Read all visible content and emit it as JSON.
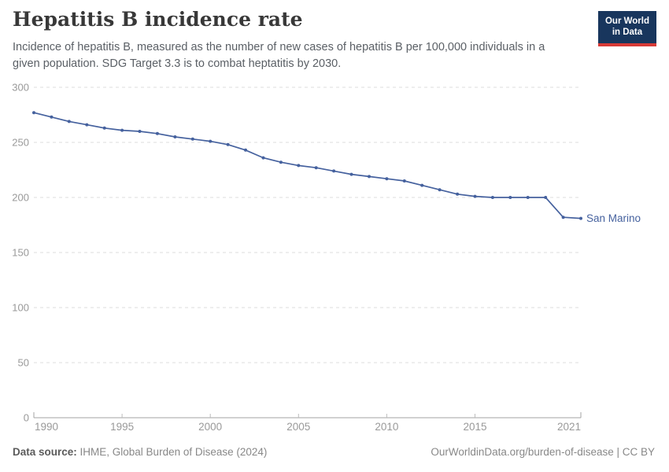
{
  "header": {
    "title": "Hepatitis B incidence rate",
    "subtitle": "Incidence of hepatitis B, measured as the number of new cases of hepatitis B per 100,000 individuals in a given population. SDG Target 3.3 is to combat heptatitis by 2030.",
    "logo": {
      "line1": "Our World",
      "line2": "in Data",
      "bg_color": "#18365d",
      "stripe_color": "#d73a36"
    }
  },
  "chart_data": {
    "type": "line",
    "title": "Hepatitis B incidence rate",
    "xlabel": "",
    "ylabel": "",
    "xlim": [
      1990,
      2021
    ],
    "ylim": [
      0,
      300
    ],
    "xticks": [
      1990,
      1995,
      2000,
      2005,
      2010,
      2015,
      2021
    ],
    "yticks": [
      0,
      50,
      100,
      150,
      200,
      250,
      300
    ],
    "grid": "horizontal-dashed",
    "legend_position": "end-of-line",
    "x": [
      1990,
      1991,
      1992,
      1993,
      1994,
      1995,
      1996,
      1997,
      1998,
      1999,
      2000,
      2001,
      2002,
      2003,
      2004,
      2005,
      2006,
      2007,
      2008,
      2009,
      2010,
      2011,
      2012,
      2013,
      2014,
      2015,
      2016,
      2017,
      2018,
      2019,
      2020,
      2021
    ],
    "series": [
      {
        "name": "San Marino",
        "values": [
          277,
          273,
          269,
          266,
          263,
          261,
          260,
          258,
          255,
          253,
          251,
          248,
          243,
          236,
          232,
          229,
          227,
          224,
          221,
          219,
          217,
          215,
          211,
          207,
          203,
          201,
          200,
          200,
          200,
          200,
          182,
          181
        ]
      }
    ],
    "colors": {
      "line": "#45619e",
      "grid": "#dddddd",
      "axis": "#a3a3a3",
      "tick_label": "#999999",
      "end_label": "#45619e"
    }
  },
  "footer": {
    "source_label": "Data source:",
    "source_text": " IHME, Global Burden of Disease (2024)",
    "license_text": "OurWorldinData.org/burden-of-disease | CC BY"
  }
}
